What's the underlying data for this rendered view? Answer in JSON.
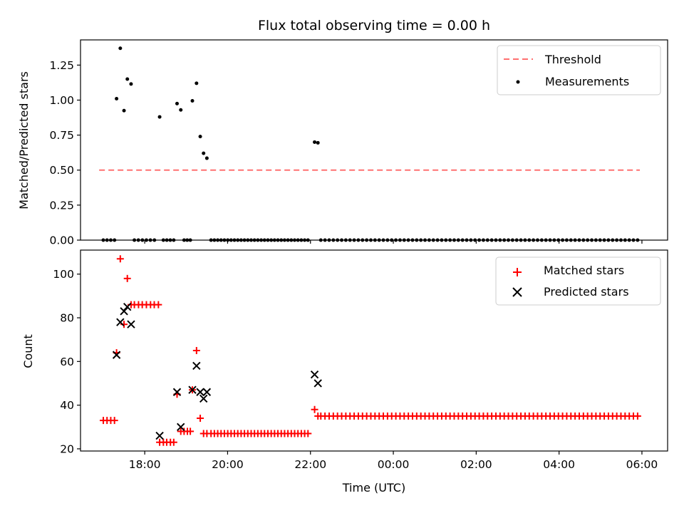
{
  "chart_data": [
    {
      "type": "scatter",
      "title": "Flux total observing time = 0.00 h",
      "xlabel": "",
      "ylabel": "Matched/Predicted stars",
      "xlim": [
        16.45,
        30.62
      ],
      "ylim": [
        0.0,
        1.43
      ],
      "yticks": [
        0.0,
        0.25,
        0.5,
        0.75,
        1.0,
        1.25
      ],
      "ytick_labels": [
        "0.00",
        "0.25",
        "0.50",
        "0.75",
        "1.00",
        "1.25"
      ],
      "legend": {
        "position": "top-right",
        "entries": [
          "Threshold",
          "Measurements"
        ]
      },
      "threshold": {
        "name": "Threshold",
        "y": 0.5,
        "x_start": 16.9,
        "x_end": 29.95,
        "color": "#ff7070"
      },
      "measurements": {
        "name": "Measurements",
        "color": "#000000",
        "points": [
          [
            17.32,
            1.01
          ],
          [
            17.41,
            1.37
          ],
          [
            17.5,
            0.925
          ],
          [
            17.58,
            1.15
          ],
          [
            17.67,
            1.115
          ],
          [
            18.36,
            0.88
          ],
          [
            18.78,
            0.975
          ],
          [
            18.87,
            0.93
          ],
          [
            19.15,
            0.995
          ],
          [
            19.25,
            1.12
          ],
          [
            19.34,
            0.74
          ],
          [
            19.42,
            0.62
          ],
          [
            19.5,
            0.585
          ],
          [
            22.1,
            0.7
          ],
          [
            22.18,
            0.695
          ]
        ],
        "zero_groups": [
          {
            "start": 17.0,
            "end": 17.27,
            "step": 0.09
          },
          {
            "start": 17.75,
            "end": 18.33,
            "step": 0.0967
          },
          {
            "start": 18.45,
            "end": 18.7,
            "step": 0.0833
          },
          {
            "start": 18.95,
            "end": 19.1,
            "step": 0.075
          },
          {
            "start": 19.6,
            "end": 22.02,
            "step": 0.0807
          },
          {
            "start": 22.25,
            "end": 29.9,
            "step": 0.1006
          }
        ]
      }
    },
    {
      "type": "scatter",
      "title": "",
      "xlabel": "Time (UTC)",
      "ylabel": "Count",
      "xlim": [
        16.45,
        30.62
      ],
      "ylim": [
        19.0,
        111.0
      ],
      "yticks": [
        20,
        40,
        60,
        80,
        100
      ],
      "ytick_labels": [
        "20",
        "40",
        "60",
        "80",
        "100"
      ],
      "xticks": [
        18,
        20,
        22,
        24,
        26,
        28,
        30
      ],
      "xtick_labels": [
        "18:00",
        "20:00",
        "22:00",
        "00:00",
        "02:00",
        "04:00",
        "06:00"
      ],
      "legend": {
        "position": "top-right",
        "entries": [
          "Matched stars",
          "Predicted stars"
        ]
      },
      "series": [
        {
          "name": "Matched stars",
          "marker": "+",
          "color": "#ff0000",
          "points": [
            [
              17.0,
              33
            ],
            [
              17.09,
              33
            ],
            [
              17.18,
              33
            ],
            [
              17.27,
              33
            ],
            [
              17.32,
              64
            ],
            [
              17.41,
              107
            ],
            [
              17.5,
              77
            ],
            [
              17.58,
              98
            ],
            [
              17.67,
              86
            ],
            [
              17.75,
              86
            ],
            [
              17.85,
              86
            ],
            [
              17.94,
              86
            ],
            [
              18.04,
              86
            ],
            [
              18.14,
              86
            ],
            [
              18.23,
              86
            ],
            [
              18.33,
              86
            ],
            [
              18.36,
              23
            ],
            [
              18.45,
              23
            ],
            [
              18.53,
              23
            ],
            [
              18.62,
              23
            ],
            [
              18.7,
              23
            ],
            [
              18.78,
              45
            ],
            [
              18.87,
              28
            ],
            [
              18.95,
              28
            ],
            [
              19.03,
              28
            ],
            [
              19.1,
              28
            ],
            [
              19.15,
              47
            ],
            [
              19.25,
              65
            ],
            [
              19.34,
              34
            ],
            [
              19.42,
              27
            ],
            [
              19.5,
              27
            ],
            [
              22.1,
              38
            ],
            [
              22.18,
              35
            ]
          ],
          "constant_runs": [
            {
              "start": 19.6,
              "end": 22.02,
              "step": 0.0807,
              "value": 27
            },
            {
              "start": 22.25,
              "end": 29.9,
              "step": 0.1006,
              "value": 35
            }
          ]
        },
        {
          "name": "Predicted stars",
          "marker": "x",
          "color": "#000000",
          "points": [
            [
              17.32,
              63
            ],
            [
              17.41,
              78
            ],
            [
              17.5,
              83
            ],
            [
              17.58,
              85
            ],
            [
              17.67,
              77
            ],
            [
              18.36,
              26
            ],
            [
              18.78,
              46
            ],
            [
              18.87,
              30
            ],
            [
              19.15,
              47
            ],
            [
              19.25,
              58
            ],
            [
              19.34,
              46
            ],
            [
              19.42,
              43
            ],
            [
              19.5,
              46
            ],
            [
              22.1,
              54
            ],
            [
              22.18,
              50
            ]
          ]
        }
      ]
    }
  ]
}
